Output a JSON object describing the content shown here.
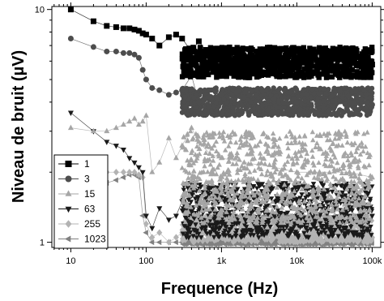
{
  "chart_data": {
    "type": "scatter",
    "xlabel": "Frequence (Hz)",
    "ylabel": "Niveau de bruit (µV)",
    "xscale": "log",
    "yscale": "log",
    "xlim": [
      5.6,
      130000
    ],
    "ylim": [
      0.95,
      10.3
    ],
    "x_ticks": [
      {
        "value": 10,
        "label": "10"
      },
      {
        "value": 100,
        "label": "100"
      },
      {
        "value": 1000,
        "label": "1k"
      },
      {
        "value": 10000,
        "label": "10k"
      },
      {
        "value": 100000,
        "label": "100k"
      }
    ],
    "y_ticks": [
      {
        "value": 1,
        "label": "1"
      },
      {
        "value": 10,
        "label": "10"
      }
    ],
    "legend_position": "bottom-left",
    "series": [
      {
        "name": "1",
        "marker": "square",
        "color": "#000000",
        "x": [
          10,
          20,
          30,
          40,
          50,
          60,
          70,
          80,
          90,
          100,
          120,
          150,
          200,
          250,
          300,
          400,
          500,
          700,
          1000,
          2000,
          5000,
          10000,
          20000,
          50000,
          100000
        ],
        "y": [
          10.0,
          8.9,
          8.5,
          8.4,
          8.3,
          8.3,
          8.2,
          8.1,
          7.9,
          7.8,
          7.5,
          7.0,
          7.6,
          7.8,
          7.5,
          6.6,
          7.3,
          6.3,
          6.2,
          6.1,
          6.0,
          5.9,
          5.9,
          5.8,
          5.8
        ],
        "band": [
          5.1,
          6.9
        ]
      },
      {
        "name": "3",
        "marker": "circle",
        "color": "#4d4d4d",
        "x": [
          10,
          20,
          30,
          40,
          50,
          60,
          70,
          80,
          90,
          100,
          120,
          150,
          200,
          250,
          300,
          400,
          500,
          700,
          1000,
          2000,
          5000,
          10000,
          20000,
          50000,
          100000
        ],
        "y": [
          7.5,
          6.9,
          6.6,
          6.6,
          6.5,
          6.5,
          6.4,
          6.2,
          5.5,
          5.0,
          4.6,
          4.5,
          4.3,
          4.4,
          4.5,
          5.2,
          4.0,
          4.2,
          4.3,
          4.2,
          4.1,
          4.0,
          4.0,
          4.0,
          3.9
        ],
        "band": [
          3.5,
          4.6
        ]
      },
      {
        "name": "15",
        "marker": "triangle-up",
        "color": "#a6a6a6",
        "x": [
          10,
          20,
          30,
          40,
          50,
          60,
          70,
          80,
          90,
          100,
          120,
          150,
          200,
          250,
          300,
          400,
          500,
          700,
          1000,
          2000,
          5000,
          10000,
          20000,
          50000,
          100000
        ],
        "y": [
          3.1,
          3.0,
          3.0,
          3.1,
          3.2,
          3.3,
          3.4,
          3.2,
          3.3,
          3.5,
          2.0,
          2.2,
          2.8,
          2.3,
          2.6,
          3.1,
          2.7,
          2.4,
          2.3,
          2.2,
          2.1,
          2.0,
          2.0,
          2.0,
          1.9
        ],
        "band": [
          1.2,
          3.0
        ]
      },
      {
        "name": "63",
        "marker": "triangle-down",
        "color": "#1a1a1a",
        "x": [
          10,
          20,
          30,
          40,
          50,
          60,
          70,
          80,
          90,
          100,
          120,
          150,
          200,
          250,
          300,
          400,
          500,
          700,
          1000,
          2000,
          5000,
          10000,
          20000,
          50000,
          100000
        ],
        "y": [
          3.6,
          3.0,
          2.7,
          2.6,
          2.5,
          2.3,
          2.2,
          2.1,
          2.0,
          1.3,
          1.15,
          1.4,
          1.25,
          1.3,
          1.5,
          1.8,
          1.4,
          1.35,
          1.3,
          1.3,
          1.3,
          1.3,
          1.3,
          1.3,
          1.3
        ],
        "band": [
          1.05,
          1.8
        ]
      },
      {
        "name": "255",
        "marker": "diamond",
        "color": "#b3b3b3",
        "x": [
          10,
          20,
          30,
          40,
          50,
          60,
          70,
          80,
          90,
          100,
          120,
          150,
          200,
          250,
          300,
          400,
          500,
          700,
          1000,
          2000,
          5000,
          10000,
          20000,
          50000,
          100000
        ],
        "y": [
          1.9,
          2.0,
          2.0,
          2.0,
          2.0,
          2.0,
          2.0,
          1.95,
          1.9,
          1.2,
          1.05,
          1.1,
          1.0,
          1.05,
          1.1,
          1.15,
          1.1,
          1.05,
          1.05,
          1.05,
          1.05,
          1.05,
          1.05,
          1.05,
          1.05
        ],
        "band": [
          1.0,
          1.3
        ]
      },
      {
        "name": "1023",
        "marker": "triangle-left",
        "color": "#808080",
        "x": [
          10,
          20,
          30,
          40,
          50,
          60,
          70,
          80,
          90,
          100,
          120,
          150,
          200,
          250,
          300,
          400,
          500,
          700,
          1000,
          2000,
          5000,
          10000,
          20000,
          50000,
          100000
        ],
        "y": [
          1.6,
          1.7,
          1.8,
          1.85,
          1.9,
          1.95,
          1.95,
          1.9,
          1.3,
          1.1,
          1.0,
          1.0,
          1.0,
          1.0,
          1.0,
          1.0,
          1.0,
          1.0,
          1.0,
          1.0,
          1.0,
          1.0,
          1.0,
          1.0,
          1.0
        ],
        "band": [
          0.98,
          1.02
        ]
      }
    ]
  }
}
